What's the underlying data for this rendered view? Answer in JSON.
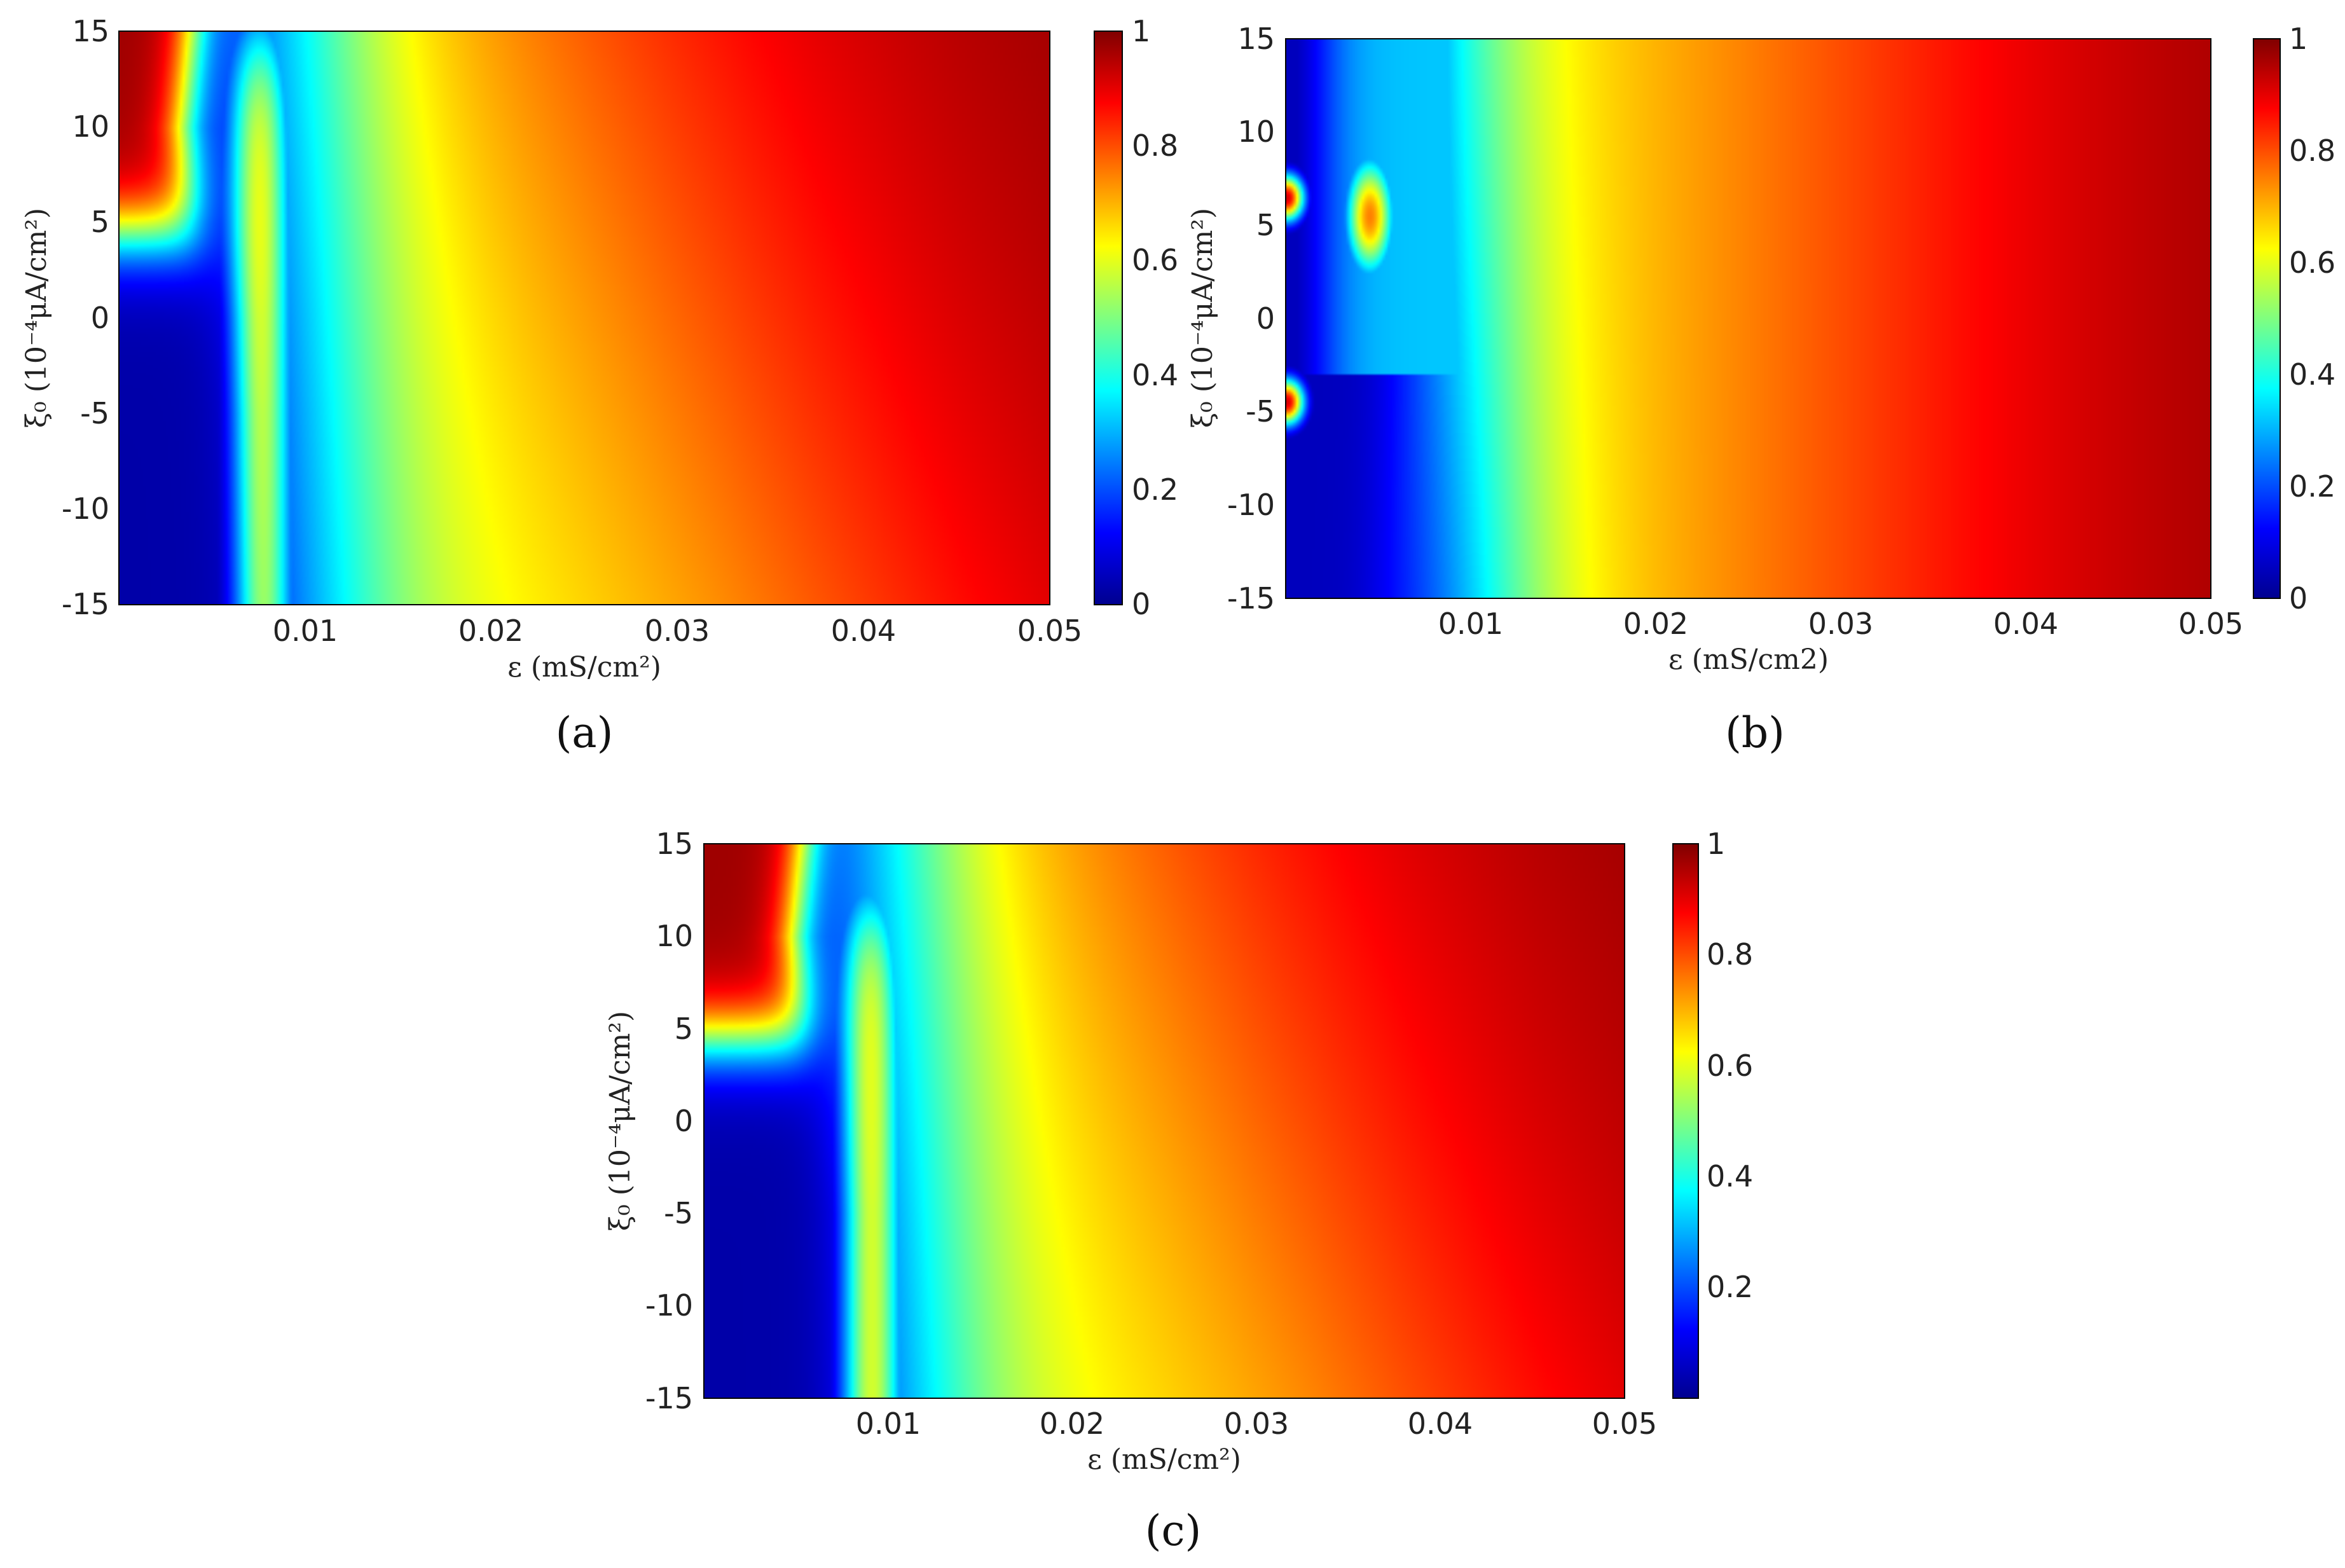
{
  "chart_data": [
    {
      "type": "heatmap",
      "panel_label": "(a)",
      "xlabel": "ε (mS/cm²)",
      "ylabel": "ξ₀ (10⁻⁴μA/cm²)",
      "xlim": [
        0,
        0.05
      ],
      "ylim": [
        -15,
        15
      ],
      "xticks": [
        "0.01",
        "0.02",
        "0.03",
        "0.04",
        "0.05"
      ],
      "yticks": [
        "15",
        "10",
        "5",
        "0",
        "-5",
        "-10",
        "-15"
      ],
      "colorbar": {
        "range": [
          0,
          1
        ],
        "ticks": [
          "1",
          "0.8",
          "0.6",
          "0.4",
          "0.2",
          "0"
        ],
        "colormap": "jet"
      },
      "grid": false,
      "features": {
        "low_region_boundary_eps": [
          [
            -15,
            0.0065
          ],
          [
            -5,
            0.006
          ],
          [
            0,
            0.0055
          ],
          [
            5,
            0.0045
          ],
          [
            10,
            0.004
          ],
          [
            15,
            0.0045
          ]
        ],
        "ridge_eps": 0.0075,
        "ridge_top_xi": 15,
        "transition_center_eps": 0.011,
        "high_region_upper_left": true
      }
    },
    {
      "type": "heatmap",
      "panel_label": "(b)",
      "xlabel": "ε (mS/cm2)",
      "ylabel": "ξ₀ (10⁻⁴μA/cm²)",
      "xlim": [
        0,
        0.05
      ],
      "ylim": [
        -15,
        15
      ],
      "xticks": [
        "0.01",
        "0.02",
        "0.03",
        "0.04",
        "0.05"
      ],
      "yticks": [
        "15",
        "10",
        "5",
        "0",
        "-5",
        "-10",
        "-15"
      ],
      "colorbar": {
        "range": [
          0,
          1
        ],
        "ticks": [
          "1",
          "0.8",
          "0.6",
          "0.4",
          "0.2",
          "0"
        ],
        "colormap": "jet"
      },
      "grid": false,
      "features": {
        "transition_center_eps": 0.01,
        "warm_spot": {
          "eps": 0.0045,
          "xi": 5.5,
          "value": 0.75
        },
        "hot_edges_xi": [
          6.5,
          -4.5
        ]
      }
    },
    {
      "type": "heatmap",
      "panel_label": "(c)",
      "xlabel": "ε (mS/cm²)",
      "ylabel": "ξ₀ (10⁻⁴μA/cm²)",
      "xlim": [
        0,
        0.05
      ],
      "ylim": [
        -15,
        15
      ],
      "xticks": [
        "0.01",
        "0.02",
        "0.03",
        "0.04",
        "0.05"
      ],
      "yticks": [
        "15",
        "10",
        "5",
        "0",
        "-5",
        "-10",
        "-15"
      ],
      "colorbar": {
        "range": [
          0,
          1
        ],
        "ticks": [
          "1",
          "0.8",
          "0.6",
          "0.4",
          "0.2"
        ],
        "colormap": "jet"
      },
      "grid": false,
      "features": {
        "low_region_boundary_eps": [
          [
            -15,
            0.007
          ],
          [
            -5,
            0.007
          ],
          [
            0,
            0.0065
          ],
          [
            5,
            0.006
          ],
          [
            10,
            0.0055
          ],
          [
            15,
            0.006
          ]
        ],
        "ridge_eps": 0.009,
        "ridge_top_xi": 12,
        "transition_center_eps": 0.0115,
        "high_region_upper_left": true
      }
    }
  ]
}
